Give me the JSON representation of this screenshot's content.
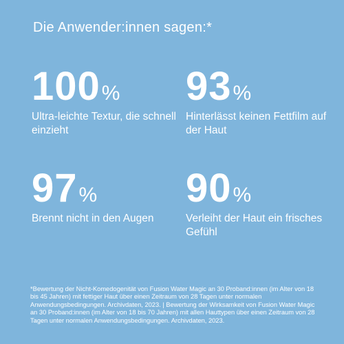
{
  "headline": "Die Anwender:innen sagen:*",
  "stats": [
    {
      "value": "100",
      "unit": "%",
      "description": "Ultra-leichte Textur, die schnell einzieht"
    },
    {
      "value": "93",
      "unit": "%",
      "description": "Hinterlässt keinen Fettfilm auf der Haut"
    },
    {
      "value": "97",
      "unit": "%",
      "description": "Brennt nicht in den Augen"
    },
    {
      "value": "90",
      "unit": "%",
      "description": "Verleiht der Haut ein frisches Gefühl"
    }
  ],
  "footnote": "*Bewertung der Nicht-Komedogenität von Fusion Water Magic an 30 Proband:innen (im Alter von 18 bis 45 Jahren) mit fettiger Haut über einen Zeitraum von 28 Tagen unter normalen Anwendungsbedingungen. Archivdaten, 2023. | Bewertung der Wirksamkeit von Fusion Water Magic an 30 Proband:innen (im Alter von 18 bis 70 Jahren) mit allen Hauttypen über einen Zeitraum von 28 Tagen unter normalen Anwendungsbedingungen. Archivdaten, 2023.",
  "colors": {
    "background": "#7fb5dc",
    "text": "#ffffff"
  }
}
